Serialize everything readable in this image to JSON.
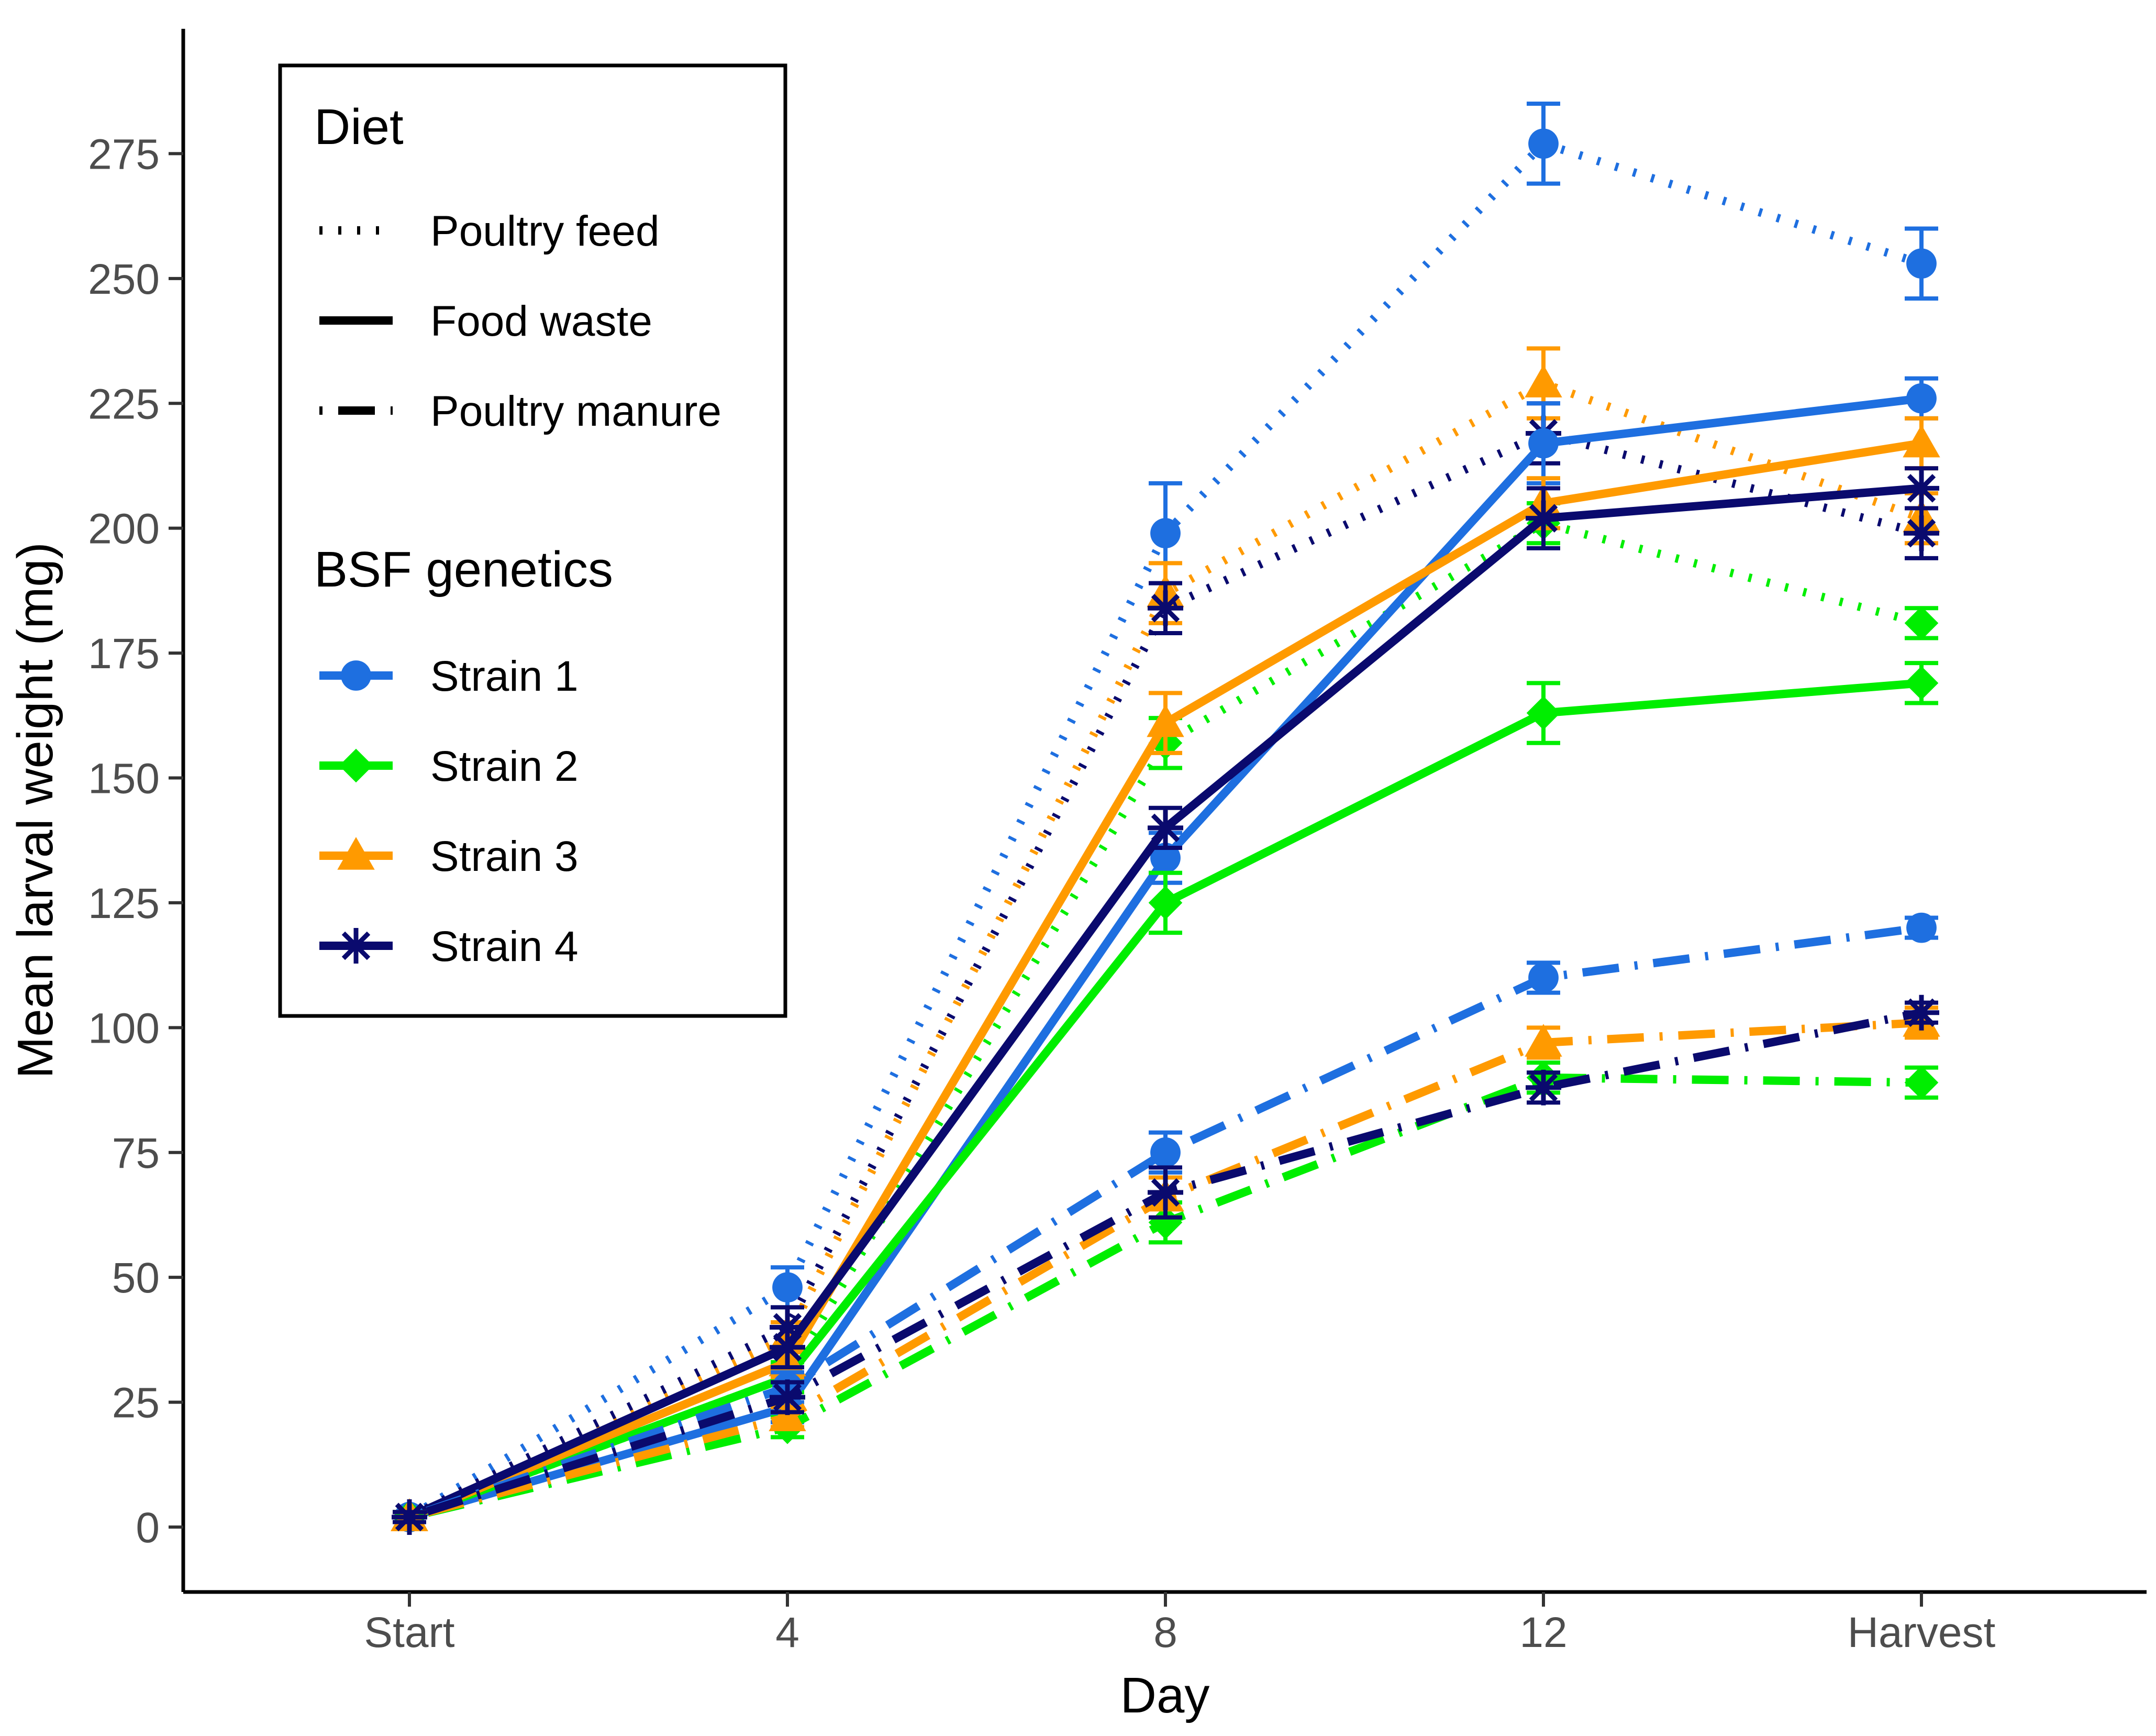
{
  "chart_data": {
    "type": "line",
    "title": "",
    "xlabel": "Day",
    "ylabel": "Mean larval weight (mg)",
    "categories": [
      "Start",
      "4",
      "8",
      "12",
      "Harvest"
    ],
    "ylim": [
      -13,
      300
    ],
    "yticks": [
      0,
      25,
      50,
      75,
      100,
      125,
      150,
      175,
      200,
      225,
      250,
      275
    ],
    "grid": false,
    "legend": {
      "position": "top-left",
      "diet_title": "Diet",
      "diet_entries": [
        {
          "label": "Poultry feed",
          "diet": "feed"
        },
        {
          "label": "Food waste",
          "diet": "waste"
        },
        {
          "label": "Poultry manure",
          "diet": "manure"
        }
      ],
      "genetics_title": "BSF genetics",
      "genetics_entries": [
        {
          "label": "Strain 1",
          "strain": "s1"
        },
        {
          "label": "Strain 2",
          "strain": "s2"
        },
        {
          "label": "Strain 3",
          "strain": "s3"
        },
        {
          "label": "Strain 4",
          "strain": "s4"
        }
      ]
    },
    "strains": {
      "s1": {
        "name": "Strain 1",
        "color": "#1E6FE0",
        "marker": "circle"
      },
      "s2": {
        "name": "Strain 2",
        "color": "#00EE00",
        "marker": "diamond"
      },
      "s3": {
        "name": "Strain 3",
        "color": "#FF9A00",
        "marker": "triangle"
      },
      "s4": {
        "name": "Strain 4",
        "color": "#0A0A6E",
        "marker": "asterisk"
      }
    },
    "series": [
      {
        "strain": "s1",
        "diet": "feed",
        "name": "Strain 1 - Poultry feed",
        "values": [
          2,
          48,
          199,
          277,
          253
        ],
        "errors": [
          1,
          4,
          10,
          8,
          7
        ]
      },
      {
        "strain": "s2",
        "diet": "feed",
        "name": "Strain 2 - Poultry feed",
        "values": [
          2,
          30,
          157,
          201,
          181
        ],
        "errors": [
          1,
          3,
          5,
          4,
          3
        ]
      },
      {
        "strain": "s3",
        "diet": "feed",
        "name": "Strain 3 - Poultry feed",
        "values": [
          2,
          38,
          187,
          229,
          202
        ],
        "errors": [
          1,
          3,
          6,
          7,
          5
        ]
      },
      {
        "strain": "s4",
        "diet": "feed",
        "name": "Strain 4 - Poultry feed",
        "values": [
          2,
          40,
          184,
          219,
          199
        ],
        "errors": [
          1,
          4,
          5,
          6,
          5
        ]
      },
      {
        "strain": "s1",
        "diet": "waste",
        "name": "Strain 1 - Food waste",
        "values": [
          2,
          24,
          134,
          217,
          226
        ],
        "errors": [
          1,
          3,
          5,
          8,
          4
        ]
      },
      {
        "strain": "s2",
        "diet": "waste",
        "name": "Strain 2 - Food waste",
        "values": [
          2,
          30,
          125,
          163,
          169
        ],
        "errors": [
          1,
          3,
          6,
          6,
          4
        ]
      },
      {
        "strain": "s3",
        "diet": "waste",
        "name": "Strain 3 - Food waste",
        "values": [
          2,
          33,
          161,
          205,
          217
        ],
        "errors": [
          1,
          3,
          6,
          5,
          5
        ]
      },
      {
        "strain": "s4",
        "diet": "waste",
        "name": "Strain 4 - Food waste",
        "values": [
          2,
          36,
          140,
          202,
          208
        ],
        "errors": [
          1,
          4,
          4,
          6,
          4
        ]
      },
      {
        "strain": "s1",
        "diet": "manure",
        "name": "Strain 1 - Poultry manure",
        "values": [
          2,
          28,
          75,
          110,
          120
        ],
        "errors": [
          1,
          3,
          4,
          3,
          2
        ]
      },
      {
        "strain": "s2",
        "diet": "manure",
        "name": "Strain 2 - Poultry manure",
        "values": [
          2,
          20,
          61,
          90,
          89
        ],
        "errors": [
          1,
          2,
          4,
          3,
          3
        ]
      },
      {
        "strain": "s3",
        "diet": "manure",
        "name": "Strain 3 - Poultry manure",
        "values": [
          2,
          22,
          66,
          97,
          101
        ],
        "errors": [
          1,
          2,
          4,
          3,
          3
        ]
      },
      {
        "strain": "s4",
        "diet": "manure",
        "name": "Strain 4 - Poultry manure",
        "values": [
          2,
          26,
          67,
          88,
          103
        ],
        "errors": [
          1,
          3,
          5,
          3,
          2
        ]
      }
    ]
  }
}
